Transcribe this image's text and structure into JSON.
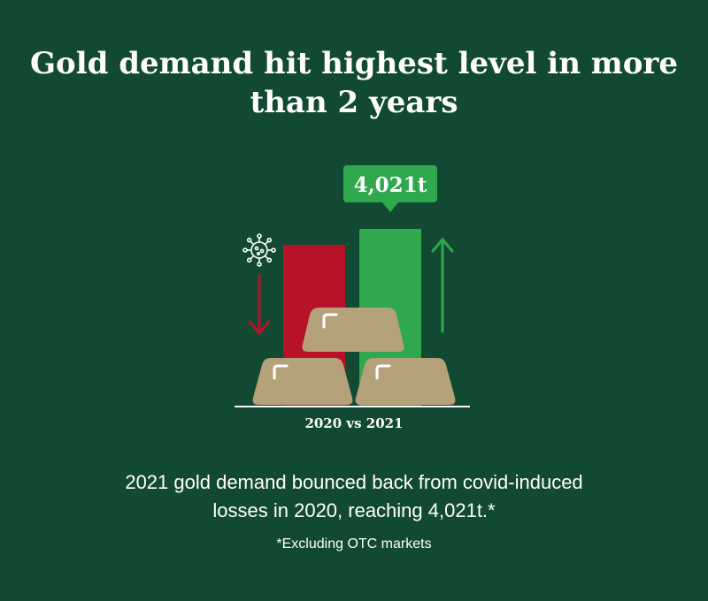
{
  "title_lines": [
    "Gold demand hit highest level in more",
    "than 2 years"
  ],
  "chart_data": {
    "type": "bar",
    "categories": [
      "2020",
      "2021"
    ],
    "values": [
      3658,
      4021
    ],
    "value_label": "4,021t",
    "xlabel": "2020 vs 2021",
    "ylim": [
      0,
      4500
    ],
    "colors": {
      "bar_2020": "#b8122a",
      "bar_2021": "#2fa84e",
      "gold": "#b6a27a",
      "background": "#124932"
    },
    "icons": [
      "virus-icon",
      "down-arrow-icon",
      "up-arrow-icon",
      "gold-bars-illustration"
    ]
  },
  "description_lines": [
    "2021 gold demand bounced back from covid-induced",
    "losses in 2020, reaching 4,021t.*"
  ],
  "footnote": "*Excluding OTC markets"
}
